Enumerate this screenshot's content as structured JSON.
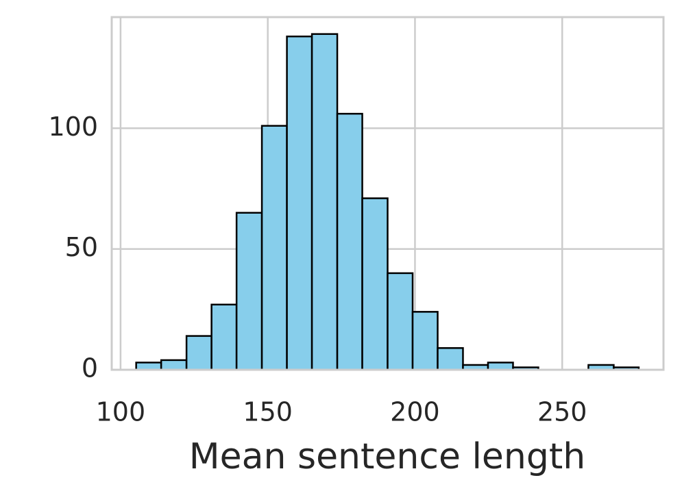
{
  "chart_data": {
    "type": "histogram",
    "xlabel": "Mean sentence length",
    "bins": [
      105.3,
      113.8,
      122.4,
      130.9,
      139.4,
      148.0,
      156.5,
      165.0,
      173.6,
      182.1,
      190.7,
      199.2,
      207.7,
      216.3,
      224.8,
      233.3,
      241.9,
      250.4,
      258.9,
      267.5,
      276.0
    ],
    "values": [
      3,
      4,
      14,
      27,
      65,
      101,
      138,
      139,
      106,
      71,
      40,
      24,
      9,
      2,
      3,
      1,
      0,
      0,
      2,
      1
    ],
    "color": "#87ceeb",
    "edgecolor": "#000000",
    "xlim": [
      97,
      284.4
    ],
    "ylim": [
      0,
      146
    ],
    "xticks": [
      100,
      150,
      200,
      250
    ],
    "yticks": [
      0,
      50,
      100
    ],
    "grid": true
  }
}
